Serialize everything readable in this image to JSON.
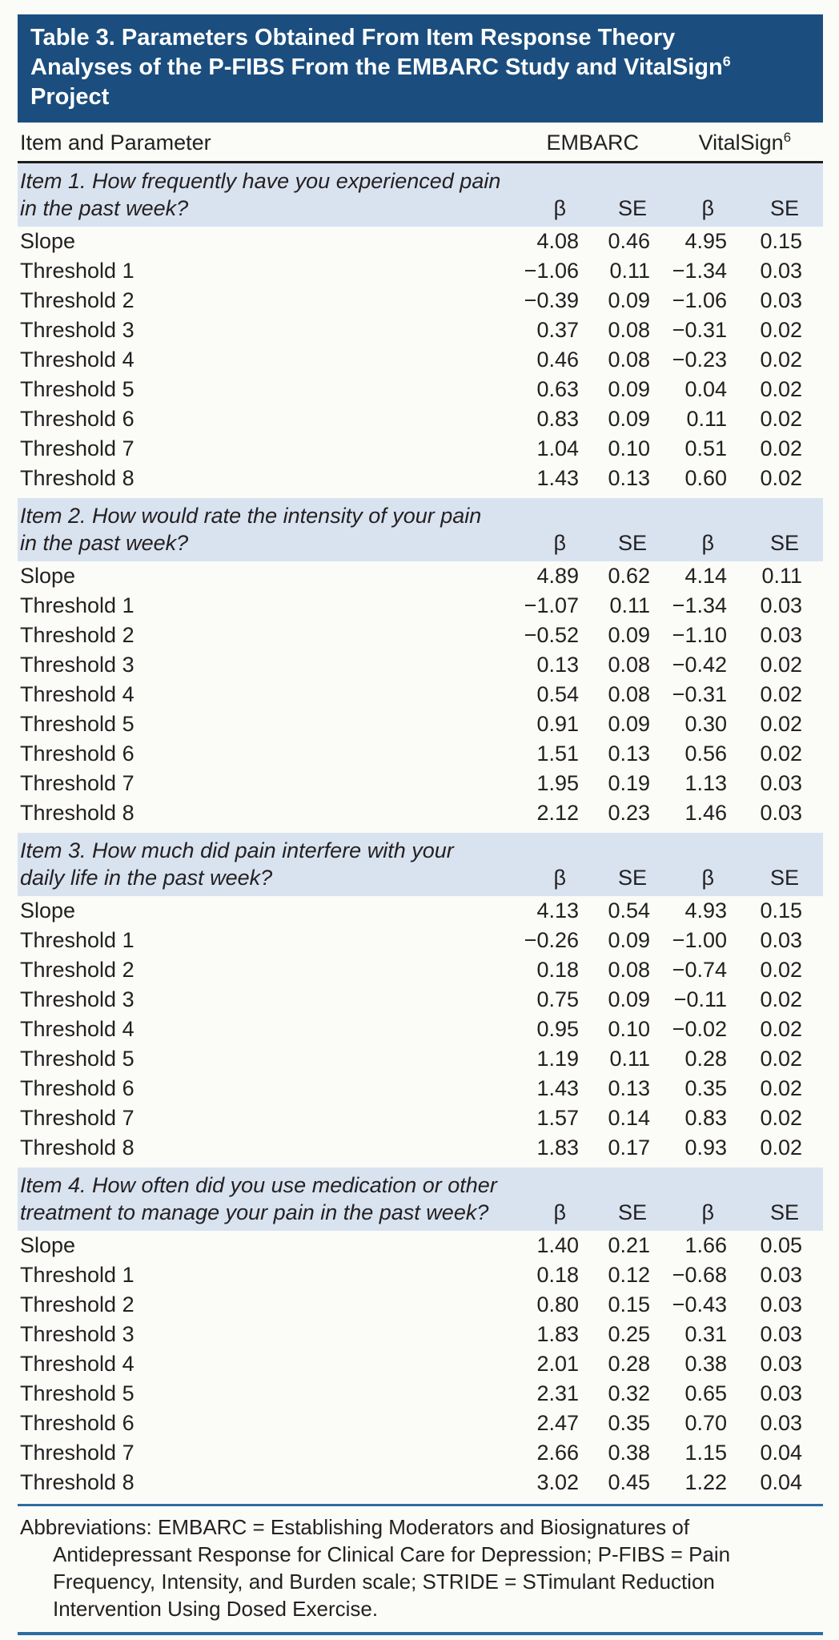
{
  "title": {
    "line1": "Table 3. Parameters Obtained From Item Response Theory",
    "line2": "Analyses of the P-FIBS From the EMBARC Study and VitalSign",
    "line2_sup": "6",
    "line3": "Project"
  },
  "header": {
    "item_and_parameter": "Item and Parameter",
    "embarc": "EMBARC",
    "vitalsign": "VitalSign",
    "vitalsign_sup": "6"
  },
  "subheaders": [
    "β",
    "SE",
    "β",
    "SE"
  ],
  "sections": [
    {
      "question_line1": "Item 1. How frequently have you experienced pain",
      "question_line2": "in the past week?",
      "rows": [
        {
          "label": "Slope",
          "values": [
            "4.08",
            "0.46",
            "4.95",
            "0.15"
          ]
        },
        {
          "label": "Threshold 1",
          "values": [
            "−1.06",
            "0.11",
            "−1.34",
            "0.03"
          ]
        },
        {
          "label": "Threshold 2",
          "values": [
            "−0.39",
            "0.09",
            "−1.06",
            "0.03"
          ]
        },
        {
          "label": "Threshold 3",
          "values": [
            "0.37",
            "0.08",
            "−0.31",
            "0.02"
          ]
        },
        {
          "label": "Threshold 4",
          "values": [
            "0.46",
            "0.08",
            "−0.23",
            "0.02"
          ]
        },
        {
          "label": "Threshold 5",
          "values": [
            "0.63",
            "0.09",
            "0.04",
            "0.02"
          ]
        },
        {
          "label": "Threshold 6",
          "values": [
            "0.83",
            "0.09",
            "0.11",
            "0.02"
          ]
        },
        {
          "label": "Threshold 7",
          "values": [
            "1.04",
            "0.10",
            "0.51",
            "0.02"
          ]
        },
        {
          "label": "Threshold 8",
          "values": [
            "1.43",
            "0.13",
            "0.60",
            "0.02"
          ]
        }
      ]
    },
    {
      "question_line1": "Item 2. How would rate the intensity of your pain",
      "question_line2": "in the past week?",
      "rows": [
        {
          "label": "Slope",
          "values": [
            "4.89",
            "0.62",
            "4.14",
            "0.11"
          ]
        },
        {
          "label": "Threshold 1",
          "values": [
            "−1.07",
            "0.11",
            "−1.34",
            "0.03"
          ]
        },
        {
          "label": "Threshold 2",
          "values": [
            "−0.52",
            "0.09",
            "−1.10",
            "0.03"
          ]
        },
        {
          "label": "Threshold 3",
          "values": [
            "0.13",
            "0.08",
            "−0.42",
            "0.02"
          ]
        },
        {
          "label": "Threshold 4",
          "values": [
            "0.54",
            "0.08",
            "−0.31",
            "0.02"
          ]
        },
        {
          "label": "Threshold 5",
          "values": [
            "0.91",
            "0.09",
            "0.30",
            "0.02"
          ]
        },
        {
          "label": "Threshold 6",
          "values": [
            "1.51",
            "0.13",
            "0.56",
            "0.02"
          ]
        },
        {
          "label": "Threshold 7",
          "values": [
            "1.95",
            "0.19",
            "1.13",
            "0.03"
          ]
        },
        {
          "label": "Threshold 8",
          "values": [
            "2.12",
            "0.23",
            "1.46",
            "0.03"
          ]
        }
      ]
    },
    {
      "question_line1": "Item 3. How much did pain interfere with your",
      "question_line2": "daily life in the past week?",
      "rows": [
        {
          "label": "Slope",
          "values": [
            "4.13",
            "0.54",
            "4.93",
            "0.15"
          ]
        },
        {
          "label": "Threshold 1",
          "values": [
            "−0.26",
            "0.09",
            "−1.00",
            "0.03"
          ]
        },
        {
          "label": "Threshold 2",
          "values": [
            "0.18",
            "0.08",
            "−0.74",
            "0.02"
          ]
        },
        {
          "label": "Threshold 3",
          "values": [
            "0.75",
            "0.09",
            "−0.11",
            "0.02"
          ]
        },
        {
          "label": "Threshold 4",
          "values": [
            "0.95",
            "0.10",
            "−0.02",
            "0.02"
          ]
        },
        {
          "label": "Threshold 5",
          "values": [
            "1.19",
            "0.11",
            "0.28",
            "0.02"
          ]
        },
        {
          "label": "Threshold 6",
          "values": [
            "1.43",
            "0.13",
            "0.35",
            "0.02"
          ]
        },
        {
          "label": "Threshold 7",
          "values": [
            "1.57",
            "0.14",
            "0.83",
            "0.02"
          ]
        },
        {
          "label": "Threshold 8",
          "values": [
            "1.83",
            "0.17",
            "0.93",
            "0.02"
          ]
        }
      ]
    },
    {
      "question_line1": "Item 4. How often did you use medication or other",
      "question_line2": "treatment to manage your pain in the past week?",
      "rows": [
        {
          "label": "Slope",
          "values": [
            "1.40",
            "0.21",
            "1.66",
            "0.05"
          ]
        },
        {
          "label": "Threshold 1",
          "values": [
            "0.18",
            "0.12",
            "−0.68",
            "0.03"
          ]
        },
        {
          "label": "Threshold 2",
          "values": [
            "0.80",
            "0.15",
            "−0.43",
            "0.03"
          ]
        },
        {
          "label": "Threshold 3",
          "values": [
            "1.83",
            "0.25",
            "0.31",
            "0.03"
          ]
        },
        {
          "label": "Threshold 4",
          "values": [
            "2.01",
            "0.28",
            "0.38",
            "0.03"
          ]
        },
        {
          "label": "Threshold 5",
          "values": [
            "2.31",
            "0.32",
            "0.65",
            "0.03"
          ]
        },
        {
          "label": "Threshold 6",
          "values": [
            "2.47",
            "0.35",
            "0.70",
            "0.03"
          ]
        },
        {
          "label": "Threshold 7",
          "values": [
            "2.66",
            "0.38",
            "1.15",
            "0.04"
          ]
        },
        {
          "label": "Threshold 8",
          "values": [
            "3.02",
            "0.45",
            "1.22",
            "0.04"
          ]
        }
      ]
    }
  ],
  "footnote": "Abbreviations: EMBARC = Establishing Moderators and Biosignatures of Antidepressant Response for Clinical Care for Depression; P-FIBS = Pain Frequency, Intensity, and Burden scale; STRIDE = STimulant Reduction Intervention Using Dosed Exercise.",
  "colors": {
    "title_bar": "#1b4e7e",
    "section_band": "#d9e3f0",
    "rule_blue": "#2d6ca3",
    "rule_black": "#1c1c1c",
    "text": "#242021"
  }
}
